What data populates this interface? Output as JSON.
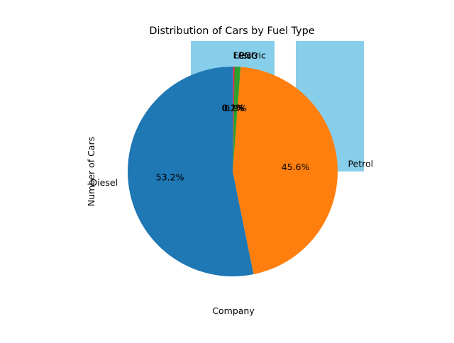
{
  "chart_data": {
    "type": "pie",
    "title": "Distribution of Cars by Fuel Type",
    "xlabel": "Company",
    "ylabel": "Number of Cars",
    "categories": [
      "Diesel",
      "Petrol",
      "CNG",
      "LPG",
      "Electric"
    ],
    "values": [
      53.2,
      45.6,
      0.9,
      0.2,
      0.1
    ],
    "pct_labels": [
      "53.2%",
      "45.6%",
      "0.9%",
      "0.2%",
      "0.1%"
    ],
    "colors": [
      "#1f77b4",
      "#ff7f0e",
      "#2ca02c",
      "#d62728",
      "#9467bd"
    ],
    "start_angle_deg": 90,
    "background_bars": {
      "color": "#87ceeb",
      "count": 2
    }
  }
}
